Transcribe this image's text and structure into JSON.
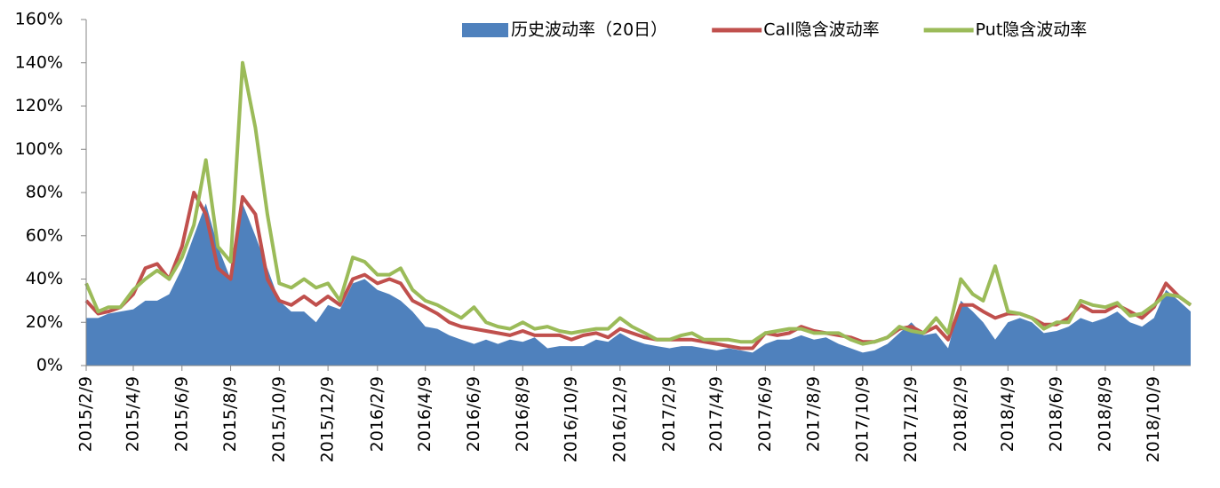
{
  "chart_data": {
    "type": "line",
    "x": [
      "2015/2/9",
      "2015/2/24",
      "2015/3/9",
      "2015/3/24",
      "2015/4/9",
      "2015/4/24",
      "2015/5/9",
      "2015/5/24",
      "2015/6/9",
      "2015/6/24",
      "2015/7/9",
      "2015/7/24",
      "2015/8/9",
      "2015/8/24",
      "2015/9/9",
      "2015/9/24",
      "2015/10/9",
      "2015/10/24",
      "2015/11/9",
      "2015/11/24",
      "2015/12/9",
      "2015/12/24",
      "2016/1/9",
      "2016/1/24",
      "2016/2/9",
      "2016/2/24",
      "2016/3/9",
      "2016/3/24",
      "2016/4/9",
      "2016/4/24",
      "2016/5/9",
      "2016/5/24",
      "2016/6/9",
      "2016/6/24",
      "2016/7/9",
      "2016/7/24",
      "2016/8/9",
      "2016/8/24",
      "2016/9/9",
      "2016/9/24",
      "2016/10/9",
      "2016/10/24",
      "2016/11/9",
      "2016/11/24",
      "2016/12/9",
      "2016/12/24",
      "2017/1/9",
      "2017/1/24",
      "2017/2/9",
      "2017/2/24",
      "2017/3/9",
      "2017/3/24",
      "2017/4/9",
      "2017/4/24",
      "2017/5/9",
      "2017/5/24",
      "2017/6/9",
      "2017/6/24",
      "2017/7/9",
      "2017/7/24",
      "2017/8/9",
      "2017/8/24",
      "2017/9/9",
      "2017/9/24",
      "2017/10/9",
      "2017/10/24",
      "2017/11/9",
      "2017/11/24",
      "2017/12/9",
      "2017/12/24",
      "2018/1/9",
      "2018/1/24",
      "2018/2/9",
      "2018/2/24",
      "2018/3/9",
      "2018/3/24",
      "2018/4/9",
      "2018/4/24",
      "2018/5/9",
      "2018/5/24",
      "2018/6/9",
      "2018/6/24",
      "2018/7/9",
      "2018/7/24",
      "2018/8/9",
      "2018/8/24",
      "2018/9/9",
      "2018/9/24",
      "2018/10/9",
      "2018/10/24",
      "2018/11/9",
      "2018/11/24"
    ],
    "series": [
      {
        "name": "历史波动率（20日）",
        "type": "area",
        "color": "#4f81bd",
        "values": [
          22,
          22,
          24,
          25,
          26,
          30,
          30,
          33,
          45,
          60,
          75,
          55,
          40,
          75,
          60,
          45,
          30,
          25,
          25,
          20,
          28,
          26,
          38,
          40,
          35,
          33,
          30,
          25,
          18,
          17,
          14,
          12,
          10,
          12,
          10,
          12,
          11,
          13,
          8,
          9,
          9,
          9,
          12,
          11,
          15,
          12,
          10,
          9,
          8,
          9,
          9,
          8,
          7,
          8,
          7,
          6,
          10,
          12,
          12,
          14,
          12,
          13,
          10,
          8,
          6,
          7,
          10,
          15,
          20,
          14,
          15,
          8,
          30,
          25,
          20,
          12,
          20,
          22,
          20,
          15,
          16,
          18,
          22,
          20,
          22,
          25,
          20,
          18,
          22,
          35,
          30,
          25
        ]
      },
      {
        "name": "Call隐含波动率",
        "type": "line",
        "color": "#c0504d",
        "values": [
          30,
          24,
          25,
          27,
          33,
          45,
          47,
          40,
          55,
          80,
          70,
          45,
          40,
          78,
          70,
          40,
          30,
          28,
          32,
          28,
          32,
          28,
          40,
          42,
          38,
          40,
          38,
          30,
          27,
          24,
          20,
          18,
          17,
          16,
          15,
          14,
          16,
          14,
          14,
          14,
          12,
          14,
          15,
          13,
          17,
          15,
          13,
          12,
          12,
          12,
          12,
          11,
          10,
          9,
          8,
          8,
          15,
          14,
          15,
          18,
          16,
          15,
          14,
          13,
          11,
          11,
          13,
          17,
          18,
          15,
          18,
          12,
          28,
          28,
          25,
          22,
          24,
          24,
          22,
          19,
          19,
          22,
          28,
          25,
          25,
          28,
          25,
          22,
          27,
          38,
          32,
          28
        ]
      },
      {
        "name": "Put隐含波动率",
        "type": "line",
        "color": "#9bbb59",
        "values": [
          38,
          25,
          27,
          27,
          35,
          40,
          44,
          40,
          50,
          65,
          95,
          55,
          48,
          140,
          110,
          70,
          38,
          36,
          40,
          36,
          38,
          30,
          50,
          48,
          42,
          42,
          45,
          35,
          30,
          28,
          25,
          22,
          27,
          20,
          18,
          17,
          20,
          17,
          18,
          16,
          15,
          16,
          17,
          17,
          22,
          18,
          15,
          12,
          12,
          14,
          15,
          12,
          12,
          12,
          11,
          11,
          15,
          16,
          17,
          17,
          15,
          15,
          15,
          12,
          10,
          11,
          13,
          18,
          16,
          15,
          22,
          15,
          40,
          33,
          30,
          46,
          25,
          24,
          22,
          17,
          20,
          20,
          30,
          28,
          27,
          29,
          23,
          24,
          28,
          33,
          32,
          28
        ]
      }
    ],
    "xlim": [
      "2015/2/9",
      "2018/11/24"
    ],
    "xticks": [
      "2015/2/9",
      "2015/4/9",
      "2015/6/9",
      "2015/8/9",
      "2015/10/9",
      "2015/12/9",
      "2016/2/9",
      "2016/4/9",
      "2016/6/9",
      "2016/8/9",
      "2016/10/9",
      "2016/12/9",
      "2017/2/9",
      "2017/4/9",
      "2017/6/9",
      "2017/8/9",
      "2017/10/9",
      "2017/12/9",
      "2018/2/9",
      "2018/4/9",
      "2018/6/9",
      "2018/8/9",
      "2018/10/9"
    ],
    "ylim": [
      0,
      160
    ],
    "yticks": [
      {
        "value": 0,
        "label": "0%"
      },
      {
        "value": 20,
        "label": "20%"
      },
      {
        "value": 40,
        "label": "40%"
      },
      {
        "value": 60,
        "label": "60%"
      },
      {
        "value": 80,
        "label": "80%"
      },
      {
        "value": 100,
        "label": "100%"
      },
      {
        "value": 120,
        "label": "120%"
      },
      {
        "value": 140,
        "label": "140%"
      },
      {
        "value": 160,
        "label": "160%"
      }
    ],
    "grid": false,
    "legend": "top-right"
  }
}
